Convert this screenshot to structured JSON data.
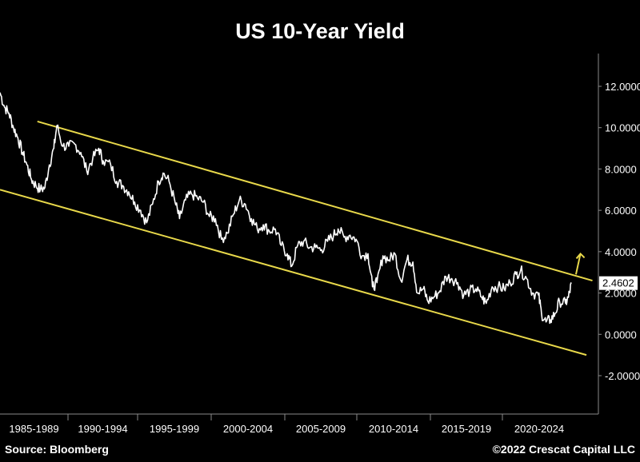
{
  "chart_data": {
    "type": "line",
    "title": "US 10-Year Yield",
    "xlabel": "",
    "ylabel": "",
    "xlim": [
      1984,
      2024
    ],
    "ylim": [
      -3.5,
      13.5
    ],
    "y_ticks": [
      "12.0000",
      "10.0000",
      "8.0000",
      "6.0000",
      "4.0000",
      "2.0000",
      "0.0000",
      "-2.0000"
    ],
    "y_tick_values": [
      12,
      10,
      8,
      6,
      4,
      2,
      0,
      -2
    ],
    "x_tick_labels": [
      "1985-1989",
      "1990-1994",
      "1995-1999",
      "2000-2004",
      "2005-2009",
      "2010-2014",
      "2015-2019",
      "2020-2024"
    ],
    "grid": false,
    "series": [
      {
        "color": "#ffffff",
        "x": [
          1984.0,
          1984.3,
          1984.6,
          1984.9,
          1985.2,
          1985.5,
          1985.8,
          1986.1,
          1986.4,
          1986.7,
          1987.0,
          1987.3,
          1987.6,
          1987.8,
          1988.2,
          1988.6,
          1989.0,
          1989.4,
          1989.8,
          1990.2,
          1990.6,
          1990.9,
          1991.4,
          1991.8,
          1992.2,
          1992.6,
          1993.0,
          1993.4,
          1993.8,
          1994.2,
          1994.6,
          1994.9,
          1995.3,
          1995.7,
          1996.0,
          1996.4,
          1996.8,
          1997.2,
          1997.6,
          1998.0,
          1998.4,
          1998.8,
          1999.2,
          1999.6,
          2000.0,
          2000.4,
          2000.8,
          2001.2,
          2001.6,
          2002.0,
          2002.4,
          2002.8,
          2003.2,
          2003.5,
          2003.9,
          2004.3,
          2004.7,
          2005.1,
          2005.5,
          2005.9,
          2006.3,
          2006.6,
          2007.0,
          2007.4,
          2007.8,
          2008.2,
          2008.6,
          2008.9,
          2009.2,
          2009.6,
          2010.0,
          2010.4,
          2010.8,
          2011.2,
          2011.6,
          2011.9,
          2012.3,
          2012.6,
          2013.0,
          2013.4,
          2013.8,
          2014.2,
          2014.6,
          2015.0,
          2015.4,
          2015.8,
          2016.2,
          2016.5,
          2016.9,
          2017.3,
          2017.7,
          2018.1,
          2018.5,
          2018.8,
          2019.2,
          2019.6,
          2020.0,
          2020.2,
          2020.5,
          2020.8,
          2021.1,
          2021.4,
          2021.8,
          2022.0,
          2022.2
        ],
        "y": [
          11.7,
          11.0,
          10.7,
          10.0,
          9.5,
          8.8,
          8.2,
          7.5,
          7.2,
          7.0,
          7.1,
          8.2,
          9.0,
          10.1,
          9.1,
          9.1,
          9.2,
          8.8,
          7.9,
          8.5,
          9.0,
          8.4,
          8.2,
          7.4,
          7.2,
          6.9,
          6.4,
          6.0,
          5.4,
          6.3,
          7.4,
          7.8,
          7.4,
          6.4,
          5.6,
          6.5,
          6.8,
          6.6,
          6.4,
          5.7,
          5.6,
          4.6,
          4.9,
          5.8,
          6.5,
          6.3,
          5.6,
          5.1,
          5.3,
          5.0,
          5.1,
          4.3,
          3.9,
          3.3,
          4.3,
          4.5,
          4.2,
          4.2,
          4.1,
          4.5,
          4.8,
          5.1,
          4.7,
          4.8,
          4.6,
          3.8,
          3.9,
          2.3,
          2.5,
          3.8,
          3.6,
          3.9,
          2.6,
          3.6,
          3.5,
          2.0,
          2.2,
          1.6,
          1.8,
          2.1,
          2.8,
          2.7,
          2.5,
          1.9,
          2.1,
          2.2,
          1.8,
          1.5,
          2.3,
          2.3,
          2.2,
          2.5,
          2.9,
          3.1,
          2.7,
          2.0,
          1.9,
          1.0,
          0.6,
          0.7,
          1.0,
          1.6,
          1.5,
          1.8,
          2.46
        ]
      }
    ],
    "channel_lines": [
      {
        "color": "#e8d84a",
        "x": [
          1986.5,
          2023.6
        ],
        "y": [
          10.3,
          2.6
        ]
      },
      {
        "color": "#e8d84a",
        "x": [
          1984.0,
          2023.2
        ],
        "y": [
          7.0,
          -1.0
        ]
      }
    ],
    "arrow": {
      "color": "#e8d84a",
      "x": [
        2022.5,
        2022.8
      ],
      "y": [
        2.9,
        3.9
      ]
    },
    "last_value_label": "2.4602",
    "last_value": 2.4602
  },
  "footer": {
    "source": "Source: Bloomberg",
    "copyright": "©2022 Crescat Capital LLC"
  }
}
